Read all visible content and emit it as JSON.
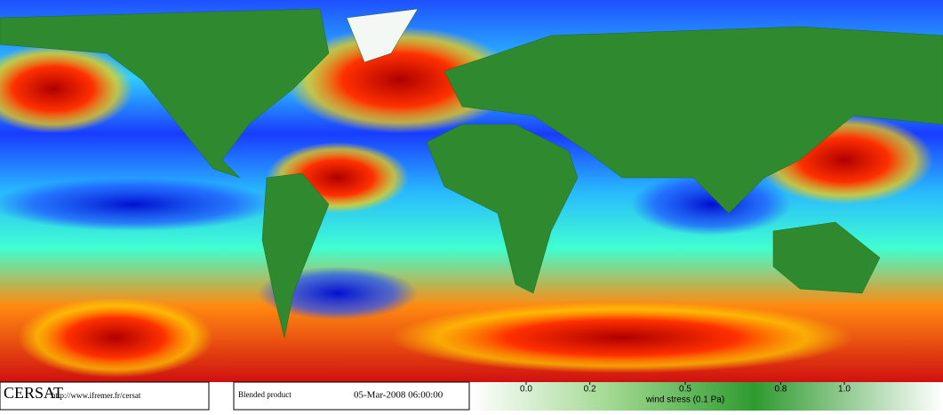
{
  "footer": {
    "logo": "CERSAT",
    "url": "http://www.ifremer.fr/cersat",
    "product": "Blended product",
    "date": "05-Mar-2008 06:00:00"
  },
  "colorbar": {
    "lim": [
      0,
      1
    ],
    "ticks": [
      {
        "value": 0,
        "label": "0.0"
      },
      0.2,
      0.5,
      0.8,
      {
        "value": 1,
        "label": "1.0"
      }
    ],
    "label": "wind stress (0.1 Pa)"
  }
}
